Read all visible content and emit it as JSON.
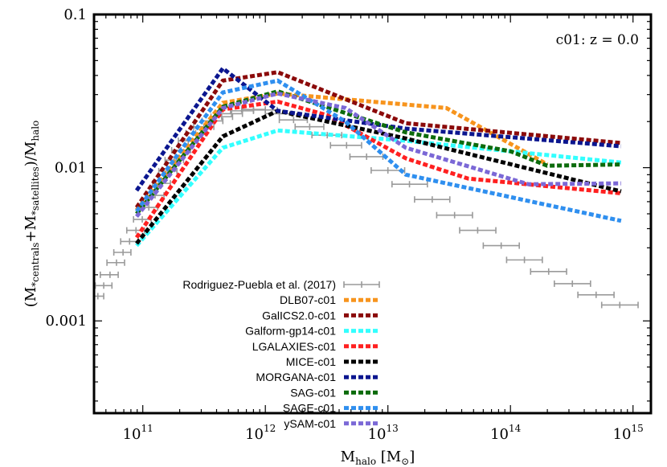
{
  "chart_data": {
    "type": "line",
    "annotation": "c01: z = 0.0",
    "xlabel": {
      "main": "M",
      "sub": "halo",
      "unit_open": " [M",
      "unit_sub": "⊙",
      "unit_close": "]"
    },
    "ylabel": {
      "open": "(M",
      "sub1": "*centrals",
      "plus": "+M",
      "sub2": "*satellites",
      "close": ")/M",
      "sub3": "halo"
    },
    "xscale": "log",
    "yscale": "log",
    "xlim": [
      40000000000.0,
      1400000000000000.0
    ],
    "ylim": [
      0.00025,
      0.1
    ],
    "x_ticks": [
      {
        "value": 100000000000.0,
        "base": "10",
        "exp": "11"
      },
      {
        "value": 1000000000000.0,
        "base": "10",
        "exp": "12"
      },
      {
        "value": 10000000000000.0,
        "base": "10",
        "exp": "13"
      },
      {
        "value": 100000000000000.0,
        "base": "10",
        "exp": "14"
      },
      {
        "value": 1000000000000000.0,
        "base": "10",
        "exp": "15"
      }
    ],
    "y_ticks": [
      {
        "value": 0.001,
        "label": "0.001"
      },
      {
        "value": 0.01,
        "label": "0.01"
      },
      {
        "value": 0.1,
        "label": "0.1"
      }
    ],
    "legend_position": "bottom-center",
    "observations": {
      "name": "Rodriguez-Puebla et al. (2017)",
      "color": "#9a9a9a",
      "points": [
        {
          "x": 43000000000.0,
          "xlo": 38000000000.0,
          "xhi": 48000000000.0,
          "y": 0.00145
        },
        {
          "x": 48000000000.0,
          "xlo": 41000000000.0,
          "xhi": 56000000000.0,
          "y": 0.0017
        },
        {
          "x": 54000000000.0,
          "xlo": 45000000000.0,
          "xhi": 63000000000.0,
          "y": 0.002
        },
        {
          "x": 61000000000.0,
          "xlo": 51000000000.0,
          "xhi": 71000000000.0,
          "y": 0.0024
        },
        {
          "x": 69000000000.0,
          "xlo": 58000000000.0,
          "xhi": 80000000000.0,
          "y": 0.0028
        },
        {
          "x": 78000000000.0,
          "xlo": 66000000000.0,
          "xhi": 92000000000.0,
          "y": 0.0033
        },
        {
          "x": 88000000000.0,
          "xlo": 74000000000.0,
          "xhi": 103000000000.0,
          "y": 0.0039
        },
        {
          "x": 99000000000.0,
          "xlo": 84000000000.0,
          "xhi": 117000000000.0,
          "y": 0.0046
        },
        {
          "x": 112000000000.0,
          "xlo": 95000000000.0,
          "xhi": 132000000000.0,
          "y": 0.0055
        },
        {
          "x": 126000000000.0,
          "xlo": 107000000000.0,
          "xhi": 149000000000.0,
          "y": 0.0066
        },
        {
          "x": 142000000000.0,
          "xlo": 120000000000.0,
          "xhi": 168000000000.0,
          "y": 0.0079
        },
        {
          "x": 160000000000.0,
          "xlo": 135000000000.0,
          "xhi": 190000000000.0,
          "y": 0.0095
        },
        {
          "x": 180000000000.0,
          "xlo": 152000000000.0,
          "xhi": 215000000000.0,
          "y": 0.0112
        },
        {
          "x": 205000000000.0,
          "xlo": 172000000000.0,
          "xhi": 245000000000.0,
          "y": 0.013
        },
        {
          "x": 235000000000.0,
          "xlo": 195000000000.0,
          "xhi": 280000000000.0,
          "y": 0.015
        },
        {
          "x": 270000000000.0,
          "xlo": 225000000000.0,
          "xhi": 325000000000.0,
          "y": 0.0168
        },
        {
          "x": 315000000000.0,
          "xlo": 260000000000.0,
          "xhi": 380000000000.0,
          "y": 0.0185
        },
        {
          "x": 370000000000.0,
          "xlo": 305000000000.0,
          "xhi": 450000000000.0,
          "y": 0.0202
        },
        {
          "x": 440000000000.0,
          "xlo": 360000000000.0,
          "xhi": 540000000000.0,
          "y": 0.0215
        },
        {
          "x": 530000000000.0,
          "xlo": 430000000000.0,
          "xhi": 650000000000.0,
          "y": 0.0225
        },
        {
          "x": 650000000000.0,
          "xlo": 520000000000.0,
          "xhi": 800000000000.0,
          "y": 0.0235
        },
        {
          "x": 800000000000.0,
          "xlo": 640000000000.0,
          "xhi": 1000000000000.0,
          "y": 0.024
        },
        {
          "x": 1000000000000.0,
          "xlo": 800000000000.0,
          "xhi": 1250000000000.0,
          "y": 0.0238
        },
        {
          "x": 1300000000000.0,
          "xlo": 1000000000000.0,
          "xhi": 1650000000000.0,
          "y": 0.0225
        },
        {
          "x": 1700000000000.0,
          "xlo": 1300000000000.0,
          "xhi": 2200000000000.0,
          "y": 0.0205
        },
        {
          "x": 2300000000000.0,
          "xlo": 1750000000000.0,
          "xhi": 3000000000000.0,
          "y": 0.0185
        },
        {
          "x": 3200000000000.0,
          "xlo": 2400000000000.0,
          "xhi": 4200000000000.0,
          "y": 0.0163
        },
        {
          "x": 4600000000000.0,
          "xlo": 3400000000000.0,
          "xhi": 6100000000000.0,
          "y": 0.014
        },
        {
          "x": 6700000000000.0,
          "xlo": 4900000000000.0,
          "xhi": 9100000000000.0,
          "y": 0.0118
        },
        {
          "x": 10000000000000.0,
          "xlo": 7300000000000.0,
          "xhi": 13700000000000.0,
          "y": 0.0096
        },
        {
          "x": 15000000000000.0,
          "xlo": 10800000000000.0,
          "xhi": 21000000000000.0,
          "y": 0.0078
        },
        {
          "x": 23000000000000.0,
          "xlo": 16500000000000.0,
          "xhi": 32000000000000.0,
          "y": 0.0062
        },
        {
          "x": 35000000000000.0,
          "xlo": 25000000000000.0,
          "xhi": 49000000000000.0,
          "y": 0.0049
        },
        {
          "x": 54000000000000.0,
          "xlo": 38500000000000.0,
          "xhi": 76000000000000.0,
          "y": 0.0039
        },
        {
          "x": 84000000000000.0,
          "xlo": 60000000000000.0,
          "xhi": 118000000000000.0,
          "y": 0.0031
        },
        {
          "x": 130000000000000.0,
          "xlo": 93000000000000.0,
          "xhi": 182000000000000.0,
          "y": 0.0025
        },
        {
          "x": 205000000000000.0,
          "xlo": 146000000000000.0,
          "xhi": 287000000000000.0,
          "y": 0.0021
        },
        {
          "x": 320000000000000.0,
          "xlo": 228000000000000.0,
          "xhi": 450000000000000.0,
          "y": 0.00175
        },
        {
          "x": 500000000000000.0,
          "xlo": 355000000000000.0,
          "xhi": 700000000000000.0,
          "y": 0.00148
        },
        {
          "x": 780000000000000.0,
          "xlo": 555000000000000.0,
          "xhi": 1100000000000000.0,
          "y": 0.00127
        }
      ]
    },
    "series": [
      {
        "name": "DLB07-c01",
        "color": "#f7941d",
        "x": [
          89000000000.0,
          450000000000.0,
          1260000000000.0,
          30000000000000.0,
          200000000000000.0
        ],
        "y": [
          0.0053,
          0.0265,
          0.0305,
          0.0245,
          0.0105
        ]
      },
      {
        "name": "GalICS2.0-c01",
        "color": "#8b0a0a",
        "x": [
          89000000000.0,
          450000000000.0,
          1260000000000.0,
          14000000000000.0,
          800000000000000.0
        ],
        "y": [
          0.0055,
          0.037,
          0.042,
          0.0195,
          0.0145
        ]
      },
      {
        "name": "Galform-gp14-c01",
        "color": "#33ffff",
        "x": [
          89000000000.0,
          450000000000.0,
          1260000000000.0,
          14000000000000.0,
          800000000000000.0
        ],
        "y": [
          0.0031,
          0.0135,
          0.0175,
          0.015,
          0.0108
        ]
      },
      {
        "name": "LGALAXIES-c01",
        "color": "#ff2020",
        "x": [
          89000000000.0,
          450000000000.0,
          1260000000000.0,
          3200000000000.0,
          14000000000000.0,
          45000000000000.0,
          800000000000000.0
        ],
        "y": [
          0.0035,
          0.024,
          0.027,
          0.022,
          0.0115,
          0.0085,
          0.0068
        ]
      },
      {
        "name": "MICE-c01",
        "color": "#000000",
        "x": [
          89000000000.0,
          450000000000.0,
          1260000000000.0,
          14000000000000.0,
          800000000000000.0
        ],
        "y": [
          0.0032,
          0.016,
          0.0235,
          0.0155,
          0.007
        ]
      },
      {
        "name": "MORGANA-c01",
        "color": "#0b168f",
        "x": [
          89000000000.0,
          450000000000.0,
          1260000000000.0,
          14000000000000.0,
          800000000000000.0
        ],
        "y": [
          0.0071,
          0.0445,
          0.0235,
          0.018,
          0.0138
        ]
      },
      {
        "name": "SAG-c01",
        "color": "#0c6b0c",
        "x": [
          89000000000.0,
          450000000000.0,
          1260000000000.0,
          14000000000000.0,
          100000000000000.0,
          200000000000000.0,
          800000000000000.0
        ],
        "y": [
          0.005,
          0.025,
          0.0315,
          0.017,
          0.0128,
          0.0103,
          0.0105
        ]
      },
      {
        "name": "SAGE-c01",
        "color": "#2f8fef",
        "x": [
          89000000000.0,
          450000000000.0,
          1260000000000.0,
          4500000000000.0,
          14000000000000.0,
          800000000000000.0
        ],
        "y": [
          0.0052,
          0.031,
          0.037,
          0.02,
          0.009,
          0.0045
        ]
      },
      {
        "name": "ySAM-c01",
        "color": "#7b68d6",
        "x": [
          89000000000.0,
          450000000000.0,
          1260000000000.0,
          4500000000000.0,
          14000000000000.0,
          140000000000000.0,
          800000000000000.0
        ],
        "y": [
          0.0048,
          0.0245,
          0.0305,
          0.0245,
          0.0135,
          0.0078,
          0.0079
        ]
      }
    ]
  }
}
